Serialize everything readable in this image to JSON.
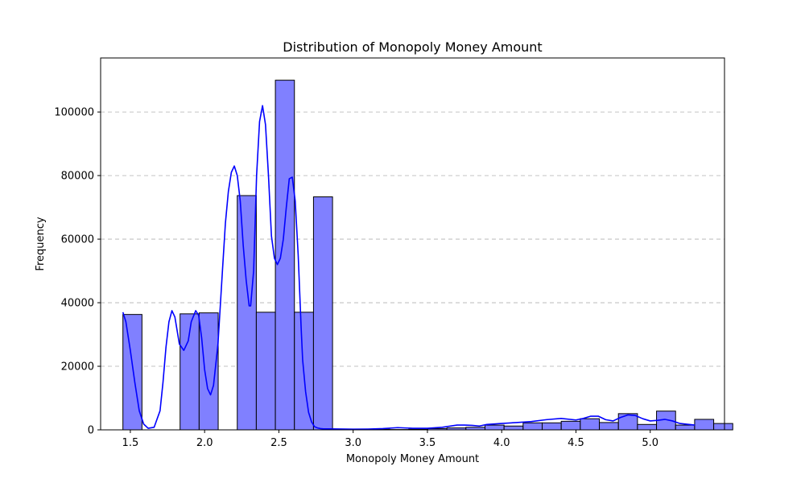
{
  "chart_data": {
    "type": "bar",
    "title": "Distribution of Monopoly Money Amount",
    "xlabel": "Monopoly Money Amount",
    "ylabel": "Frequency",
    "xlim": [
      1.3,
      5.5
    ],
    "ylim": [
      0,
      117000
    ],
    "grid": {
      "axis": "y",
      "style": "dashed"
    },
    "x_ticks": [
      1.5,
      2.0,
      2.5,
      3.0,
      3.5,
      4.0,
      4.5,
      5.0
    ],
    "x_tick_labels": [
      "1.5",
      "2.0",
      "2.5",
      "3.0",
      "3.5",
      "4.0",
      "4.5",
      "5.0"
    ],
    "y_ticks": [
      0,
      20000,
      40000,
      60000,
      80000,
      100000
    ],
    "y_tick_labels": [
      "0",
      "20000",
      "40000",
      "60000",
      "80000",
      "100000"
    ],
    "bins": {
      "start": 1.45,
      "width": 0.1283,
      "counts": [
        36300,
        0,
        0,
        36500,
        36800,
        0,
        73700,
        37000,
        110000,
        37000,
        73300,
        0,
        0,
        200,
        100,
        200,
        400,
        600,
        800,
        1500,
        1200,
        2200,
        2200,
        2700,
        3500,
        2300,
        5100,
        1700,
        5900,
        1500,
        3300,
        2000
      ]
    },
    "kde": {
      "x": [
        1.45,
        1.47,
        1.5,
        1.53,
        1.56,
        1.59,
        1.62,
        1.66,
        1.7,
        1.72,
        1.74,
        1.76,
        1.78,
        1.8,
        1.83,
        1.86,
        1.89,
        1.91,
        1.94,
        1.96,
        1.98,
        2.0,
        2.02,
        2.04,
        2.06,
        2.09,
        2.12,
        2.14,
        2.16,
        2.18,
        2.2,
        2.22,
        2.24,
        2.26,
        2.28,
        2.3,
        2.31,
        2.33,
        2.35,
        2.37,
        2.39,
        2.41,
        2.43,
        2.45,
        2.47,
        2.49,
        2.51,
        2.53,
        2.55,
        2.57,
        2.59,
        2.61,
        2.63,
        2.65,
        2.66,
        2.68,
        2.7,
        2.72,
        2.74,
        2.76,
        2.78,
        2.8,
        2.85,
        3.0,
        3.1,
        3.2,
        3.3,
        3.4,
        3.5,
        3.6,
        3.7,
        3.75,
        3.8,
        3.85,
        3.9,
        4.0,
        4.1,
        4.2,
        4.3,
        4.4,
        4.5,
        4.55,
        4.6,
        4.65,
        4.7,
        4.75,
        4.8,
        4.85,
        4.9,
        4.95,
        5.0,
        5.05,
        5.1,
        5.15,
        5.2,
        5.3
      ],
      "y": [
        37000,
        34000,
        25000,
        15000,
        6000,
        1800,
        500,
        800,
        6000,
        15000,
        26000,
        34000,
        37500,
        35500,
        27000,
        25000,
        28000,
        34000,
        37500,
        36000,
        29000,
        19000,
        13000,
        11000,
        14000,
        27000,
        50000,
        65000,
        75000,
        81000,
        83000,
        80000,
        72000,
        58000,
        47000,
        39000,
        39000,
        50000,
        80000,
        97000,
        102000,
        96000,
        80000,
        61000,
        54000,
        52000,
        54000,
        60000,
        70000,
        79000,
        79500,
        72000,
        55000,
        32000,
        22000,
        12000,
        5500,
        2500,
        1000,
        600,
        400,
        300,
        300,
        200,
        250,
        400,
        700,
        500,
        500,
        800,
        1500,
        1500,
        1400,
        1200,
        1700,
        2000,
        2300,
        2600,
        3200,
        3600,
        3100,
        3600,
        4300,
        4300,
        3200,
        2800,
        3900,
        4700,
        4500,
        3500,
        2800,
        3000,
        3300,
        2800,
        2000,
        1500
      ]
    },
    "colors": {
      "bar_fill": "#8080ff",
      "bar_edge": "#000000",
      "kde_line": "#0000ff",
      "grid": "#b0b0b0"
    }
  }
}
